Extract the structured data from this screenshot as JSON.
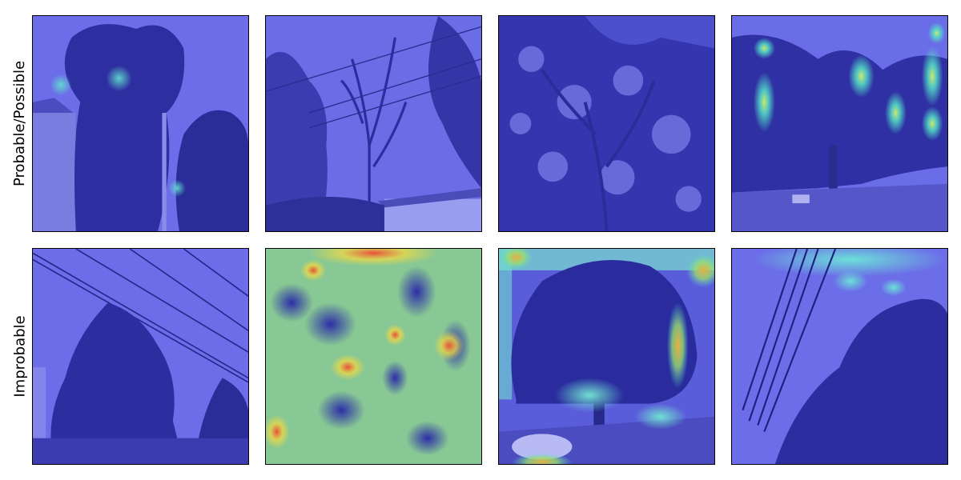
{
  "rows": [
    {
      "label": "Probable/Possible"
    },
    {
      "label": "Improbable"
    }
  ],
  "panels": [
    {
      "row": 0,
      "col": 0,
      "heatmap": "low",
      "content": "house and tall tree with power pole"
    },
    {
      "row": 0,
      "col": 1,
      "heatmap": "none",
      "content": "bare tree with power lines and house roof"
    },
    {
      "row": 0,
      "col": 2,
      "heatmap": "none",
      "content": "dense tree canopy"
    },
    {
      "row": 0,
      "col": 3,
      "heatmap": "moderate",
      "content": "tree over road with mailbox"
    },
    {
      "row": 1,
      "col": 0,
      "heatmap": "none",
      "content": "tree under power lines"
    },
    {
      "row": 1,
      "col": 1,
      "heatmap": "high",
      "content": "looking up into foliage"
    },
    {
      "row": 1,
      "col": 2,
      "heatmap": "moderate",
      "content": "large tree over street with parked car"
    },
    {
      "row": 1,
      "col": 3,
      "heatmap": "low",
      "content": "power lines and tree"
    }
  ],
  "colors": {
    "overlay_base": "#3a3ed2",
    "heat_cyan": "#4fe0e0",
    "heat_yellow": "#e8d84a",
    "heat_red": "#e8503a"
  }
}
